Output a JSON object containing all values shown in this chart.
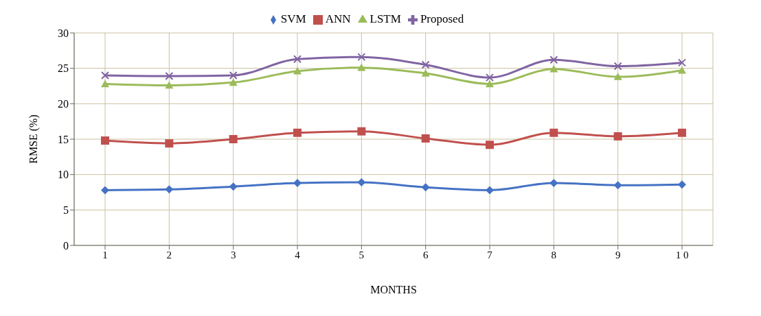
{
  "chart_data": {
    "type": "line",
    "xlabel": "MONTHS",
    "ylabel": "RMSE (%)",
    "categories": [
      "1",
      "2",
      "3",
      "4",
      "5",
      "6",
      "7",
      "8",
      "9",
      "1 0"
    ],
    "series": [
      {
        "name": "SVM",
        "color": "#4472c4",
        "marker": "diamond",
        "values": [
          7.8,
          7.9,
          8.3,
          8.8,
          8.9,
          8.2,
          7.8,
          8.8,
          8.5,
          8.6
        ]
      },
      {
        "name": "ANN",
        "color": "#c0504d",
        "marker": "square",
        "values": [
          14.8,
          14.4,
          15.0,
          15.9,
          16.1,
          15.1,
          14.2,
          15.9,
          15.4,
          15.9
        ]
      },
      {
        "name": "LSTM",
        "color": "#9bbb59",
        "marker": "triangle",
        "values": [
          22.8,
          22.6,
          23.0,
          24.6,
          25.1,
          24.3,
          22.8,
          24.9,
          23.8,
          24.7
        ]
      },
      {
        "name": "Proposed",
        "color": "#8064a2",
        "marker": "cross",
        "values": [
          24.0,
          23.9,
          24.0,
          26.3,
          26.6,
          25.5,
          23.7,
          26.2,
          25.3,
          25.8
        ]
      }
    ],
    "ylim": [
      0,
      30
    ],
    "yticks": [
      0,
      5,
      10,
      15,
      20,
      25,
      30
    ],
    "grid": true,
    "legend": "top",
    "line_style": "solid"
  }
}
